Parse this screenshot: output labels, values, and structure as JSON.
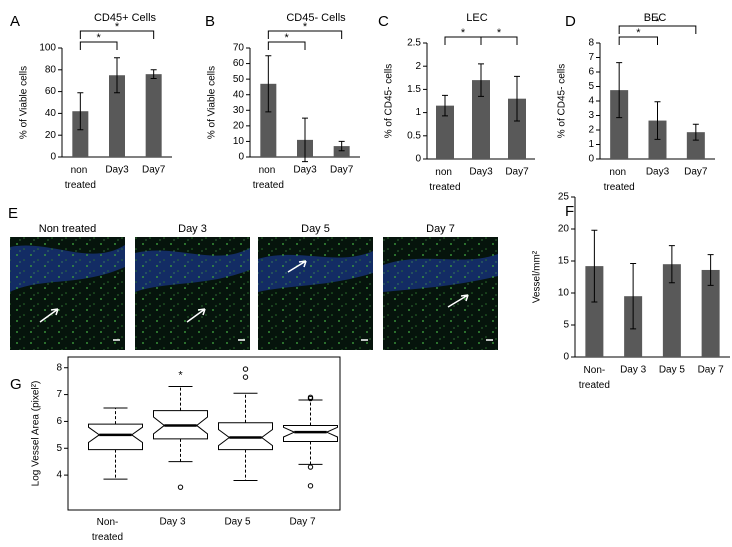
{
  "chart_data": [
    {
      "type": "bar",
      "panel_label": "A",
      "title": "CD45+ Cells",
      "ylabel": "% of Viable cells",
      "categories": [
        "non treated",
        "Day3",
        "Day7"
      ],
      "values": [
        42,
        75,
        76
      ],
      "errors": [
        17,
        16,
        4
      ],
      "ylim": [
        0,
        100
      ],
      "yticks": [
        0,
        20,
        40,
        60,
        80,
        100
      ],
      "color": "#595959",
      "brackets": [
        {
          "text": "*",
          "between": [
            "non treated",
            "Day3"
          ]
        },
        {
          "text": "*",
          "between": [
            "non treated",
            "Day7"
          ]
        }
      ]
    },
    {
      "type": "bar",
      "panel_label": "B",
      "title": "CD45- Cells",
      "ylabel": "% of Viable cells",
      "categories": [
        "non treated",
        "Day3",
        "Day7"
      ],
      "values": [
        47,
        11,
        7
      ],
      "errors": [
        18,
        14,
        3
      ],
      "ylim": [
        0,
        70
      ],
      "yticks": [
        0,
        10,
        20,
        30,
        40,
        50,
        60,
        70
      ],
      "color": "#595959",
      "brackets": [
        {
          "text": "*",
          "between": [
            "non treated",
            "Day3"
          ]
        },
        {
          "text": "*",
          "between": [
            "non treated",
            "Day7"
          ]
        }
      ]
    },
    {
      "type": "bar",
      "panel_label": "C",
      "title": "LEC",
      "ylabel": "% of CD45- cells",
      "categories": [
        "non treated",
        "Day3",
        "Day7"
      ],
      "values": [
        1.15,
        1.7,
        1.3
      ],
      "errors": [
        0.22,
        0.35,
        0.48
      ],
      "ylim": [
        0,
        2.5
      ],
      "yticks": [
        0,
        0.5,
        1,
        1.5,
        2,
        2.5
      ],
      "color": "#595959",
      "brackets": [
        {
          "text": "*",
          "between": [
            "non treated",
            "Day3"
          ]
        },
        {
          "text": "*",
          "between": [
            "Day3",
            "Day7"
          ]
        }
      ]
    },
    {
      "type": "bar",
      "panel_label": "D",
      "title": "BEC",
      "ylabel": "% of CD45- cells",
      "categories": [
        "non treated",
        "Day3",
        "Day7"
      ],
      "values": [
        4.75,
        2.65,
        1.85
      ],
      "errors": [
        1.9,
        1.3,
        0.55
      ],
      "ylim": [
        0,
        8
      ],
      "yticks": [
        0,
        1,
        2,
        3,
        4,
        5,
        6,
        7,
        8
      ],
      "color": "#595959",
      "brackets": [
        {
          "text": "*",
          "between": [
            "non treated",
            "Day3"
          ]
        },
        {
          "text": "*",
          "between": [
            "non treated",
            "Day7"
          ]
        }
      ]
    },
    {
      "type": "bar",
      "panel_label": "F",
      "ylabel": "Vessel/mm²",
      "categories": [
        "Non-treated",
        "Day 3",
        "Day 5",
        "Day 7"
      ],
      "values": [
        14.2,
        9.5,
        14.5,
        13.6
      ],
      "errors": [
        5.6,
        5.1,
        2.9,
        2.4
      ],
      "ylim": [
        0,
        25
      ],
      "yticks": [
        0,
        5,
        10,
        15,
        20,
        25
      ],
      "color": "#595959",
      "brackets": []
    },
    {
      "type": "box",
      "panel_label": "G",
      "ylabel": "Log Vessel Area (pixel²)",
      "categories": [
        "Non-treated",
        "Day 3",
        "Day 5",
        "Day 7"
      ],
      "boxes": [
        {
          "low": 3.85,
          "q1": 4.95,
          "median": 5.5,
          "q3": 5.9,
          "high": 6.5,
          "outliers": []
        },
        {
          "low": 4.5,
          "q1": 5.35,
          "median": 5.85,
          "q3": 6.4,
          "high": 7.3,
          "outliers": [
            3.55
          ]
        },
        {
          "low": 3.8,
          "q1": 4.95,
          "median": 5.4,
          "q3": 5.95,
          "high": 7.05,
          "outliers": [
            7.65,
            7.95
          ]
        },
        {
          "low": 4.4,
          "q1": 5.25,
          "median": 5.6,
          "q3": 5.85,
          "high": 6.8,
          "outliers": [
            6.85,
            6.9,
            4.3,
            3.6
          ]
        }
      ],
      "ylim": [
        2.7,
        8.4
      ],
      "yticks": [
        4,
        5,
        6,
        7,
        8
      ],
      "annotations": [
        {
          "text": "*",
          "category": "Day 3"
        }
      ]
    }
  ],
  "image_panel": {
    "panel_label": "E",
    "images": [
      {
        "title": "Non treated"
      },
      {
        "title": "Day 3"
      },
      {
        "title": "Day 5"
      },
      {
        "title": "Day 7"
      }
    ]
  }
}
